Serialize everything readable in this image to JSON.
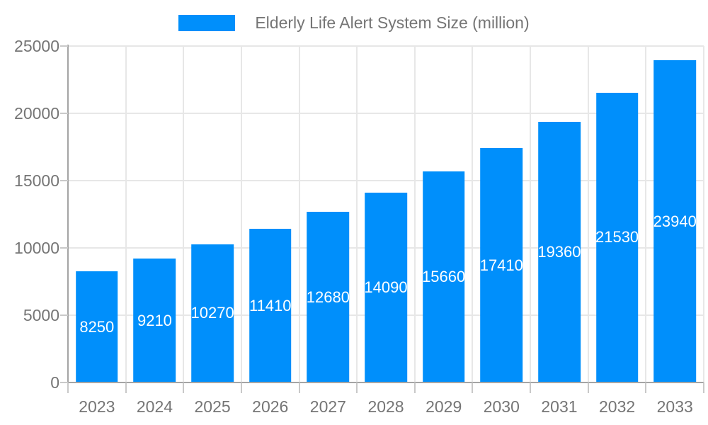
{
  "chart_data": {
    "type": "bar",
    "title": "Elderly Life Alert System Size (million)",
    "categories": [
      "2023",
      "2024",
      "2025",
      "2026",
      "2027",
      "2028",
      "2029",
      "2030",
      "2031",
      "2032",
      "2033"
    ],
    "values": [
      8250,
      9210,
      10270,
      11410,
      12680,
      14090,
      15660,
      17410,
      19360,
      21530,
      23940
    ],
    "series": [
      {
        "name": "Elderly Life Alert System Size (million)",
        "values": [
          8250,
          9210,
          10270,
          11410,
          12680,
          14090,
          15660,
          17410,
          19360,
          21530,
          23940
        ]
      }
    ],
    "xlabel": "",
    "ylabel": "",
    "ylim": [
      0,
      25000
    ],
    "yticks": [
      0,
      5000,
      10000,
      15000,
      20000,
      25000
    ],
    "ytick_labels": [
      "0",
      "5000",
      "10000",
      "15000",
      "20000",
      "25000"
    ],
    "grid": "on",
    "legend_position": "top-center",
    "data_labels": "inside-center",
    "colors": {
      "bar": "#008FFB",
      "data_label": "#ffffff",
      "axis_text": "#757575",
      "grid_line": "#e7e7e7",
      "axis_line": "#a4a4a4",
      "tick": "#c9c9c9",
      "background": "#ffffff"
    }
  }
}
